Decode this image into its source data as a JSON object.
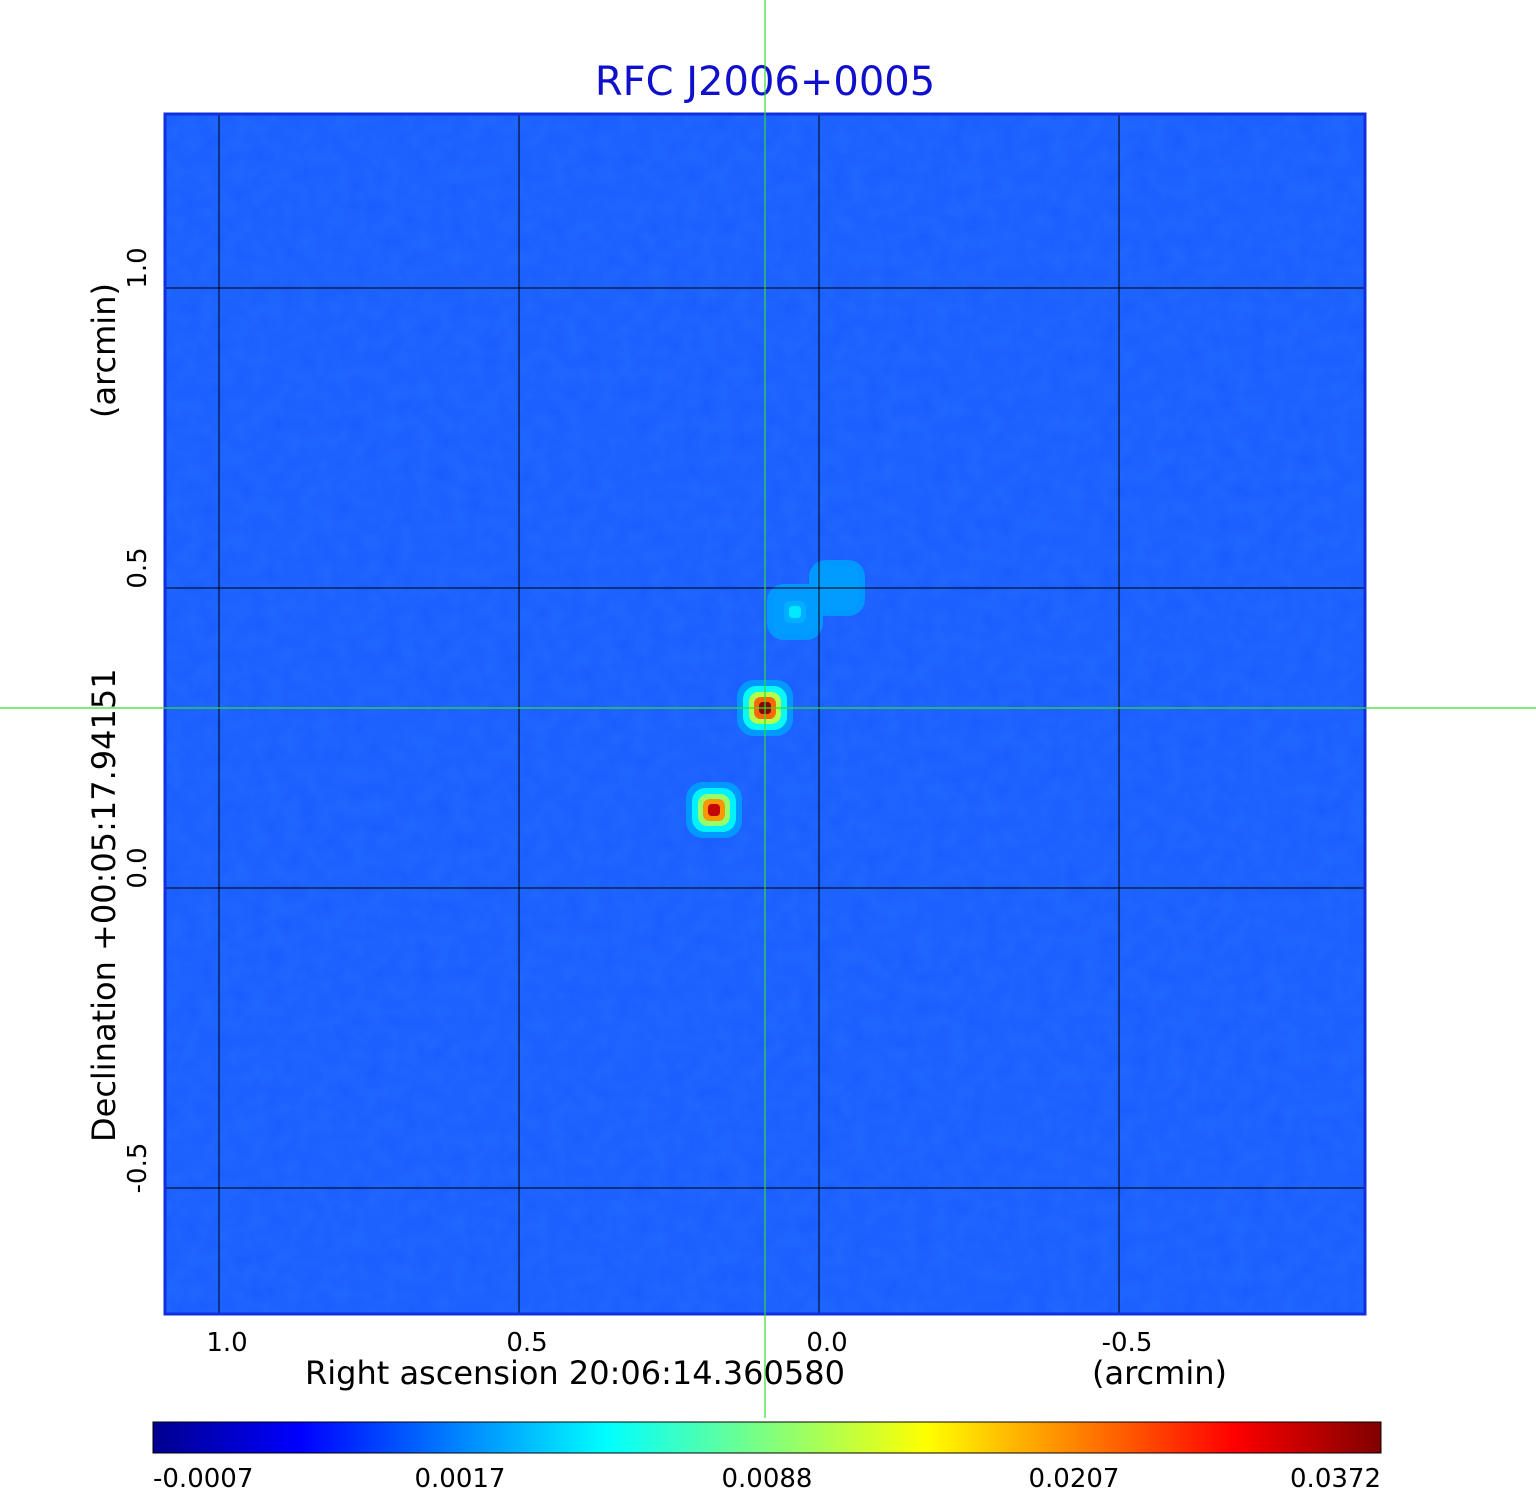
{
  "chart_data": {
    "type": "heatmap",
    "title": "RFC J2006+0005",
    "xlabel": "Right ascension  20:06:14.360580",
    "xunit": "(arcmin)",
    "ylabel": "Declination  +00:05:17.94151",
    "yunit": "(arcmin)",
    "xlim": [
      1.09,
      -0.91
    ],
    "ylim": [
      -0.71,
      1.29
    ],
    "xticks": [
      {
        "value": 1.0,
        "label": "1.0"
      },
      {
        "value": 0.5,
        "label": "0.5"
      },
      {
        "value": 0.0,
        "label": "0.0"
      },
      {
        "value": -0.5,
        "label": "-0.5"
      }
    ],
    "yticks": [
      {
        "value": 1.0,
        "label": "1.0"
      },
      {
        "value": 0.5,
        "label": "0.5"
      },
      {
        "value": 0.0,
        "label": "0.0"
      },
      {
        "value": -0.5,
        "label": "-0.5"
      }
    ],
    "grid": true,
    "crosshair": {
      "x": 0.09,
      "y": 0.3
    },
    "colormap": "jet",
    "colorbar": {
      "placement": "bottom",
      "ticks": [
        "-0.0007",
        "0.0017",
        "0.0088",
        "0.0207",
        "0.0372"
      ],
      "range": [
        -0.0007,
        0.0372
      ]
    },
    "sources": [
      {
        "x": 0.09,
        "y": 0.3,
        "peak": 0.0372
      },
      {
        "x": 0.175,
        "y": 0.13,
        "peak": 0.0345
      },
      {
        "x": 0.04,
        "y": 0.46,
        "peak": 0.0095
      },
      {
        "x": -0.03,
        "y": 0.5,
        "peak": 0.0035
      }
    ]
  },
  "colors": {
    "title": "#1010cc",
    "background_map": "#1a5cff",
    "crosshair": "#33dd33",
    "grid": "#000000"
  }
}
